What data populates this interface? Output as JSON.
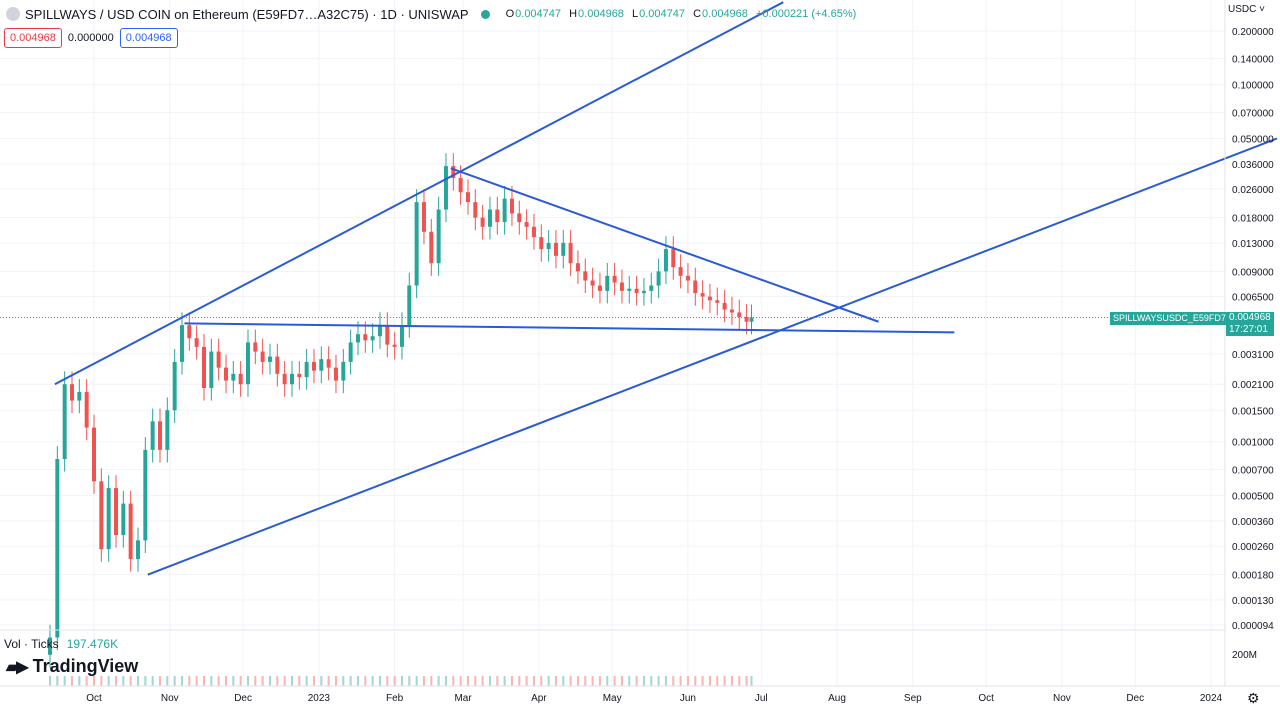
{
  "header": {
    "title": "SPILLWAYS / USD COIN on Ethereum (E59FD7…A32C75) · 1D · UNISWAP",
    "open_label": "O",
    "open": "0.004747",
    "high_label": "H",
    "high": "0.004968",
    "low_label": "L",
    "low": "0.004747",
    "close_label": "C",
    "close": "0.004968",
    "change": "+0.000221 (+4.65%)",
    "status_color": "#26a69a"
  },
  "pills": {
    "sell": "0.004968",
    "spread": "0.000000",
    "buy": "0.004968"
  },
  "currency": "USDC ˅",
  "last_price": {
    "symbol": "SPILLWAYSUSDC_E59FD7",
    "price": "0.004968",
    "countdown": "17:27:01"
  },
  "volume": {
    "label": "Vol · Ticks",
    "value": "197.476K",
    "scale_label": "200M"
  },
  "brand": {
    "name": "TradingView"
  },
  "chart_data": {
    "type": "candlestick",
    "scale": "log",
    "up_color": "#26a69a",
    "down_color": "#ef5350",
    "drawing_color": "#2a5bd7",
    "y_ticks": [
      "0.200000",
      "0.140000",
      "0.100000",
      "0.070000",
      "0.050000",
      "0.036000",
      "0.026000",
      "0.018000",
      "0.013000",
      "0.009000",
      "0.006500",
      "0.004968",
      "0.003100",
      "0.002100",
      "0.001500",
      "0.001000",
      "0.000700",
      "0.000500",
      "0.000360",
      "0.000260",
      "0.000180",
      "0.000130",
      "0.000094"
    ],
    "y_tick_values": [
      0.2,
      0.14,
      0.1,
      0.07,
      0.05,
      0.036,
      0.026,
      0.018,
      0.013,
      0.009,
      0.0065,
      0.004968,
      0.0031,
      0.0021,
      0.0015,
      0.001,
      0.0007,
      0.0005,
      0.00036,
      0.00026,
      0.00018,
      0.00013,
      9.4e-05
    ],
    "x_ticks": [
      "Oct",
      "Nov",
      "Dec",
      "2023",
      "Feb",
      "Mar",
      "Apr",
      "May",
      "Jun",
      "Jul",
      "Aug",
      "Sep",
      "Oct",
      "Nov",
      "Dec",
      "2024"
    ],
    "x_tick_dates": [
      "2022-10-01",
      "2022-11-01",
      "2022-12-01",
      "2023-01-01",
      "2023-02-01",
      "2023-03-01",
      "2023-04-01",
      "2023-05-01",
      "2023-06-01",
      "2023-07-01",
      "2023-08-01",
      "2023-09-01",
      "2023-10-01",
      "2023-11-01",
      "2023-12-01",
      "2024-01-01"
    ],
    "series": [
      {
        "points": [
          [
            "2022-09-13",
            8e-05
          ],
          [
            "2022-09-16",
            0.0008
          ],
          [
            "2022-09-19",
            0.0021
          ],
          [
            "2022-09-22",
            0.0017
          ],
          [
            "2022-09-25",
            0.0019
          ],
          [
            "2022-09-28",
            0.0012
          ],
          [
            "2022-10-01",
            0.0006
          ],
          [
            "2022-10-04",
            0.00025
          ],
          [
            "2022-10-07",
            0.00055
          ],
          [
            "2022-10-10",
            0.0003
          ],
          [
            "2022-10-13",
            0.00045
          ],
          [
            "2022-10-16",
            0.00022
          ],
          [
            "2022-10-19",
            0.00028
          ],
          [
            "2022-10-22",
            0.0009
          ],
          [
            "2022-10-25",
            0.0013
          ],
          [
            "2022-10-28",
            0.0009
          ],
          [
            "2022-10-31",
            0.0015
          ],
          [
            "2022-11-03",
            0.0028
          ],
          [
            "2022-11-06",
            0.0045
          ],
          [
            "2022-11-09",
            0.0038
          ],
          [
            "2022-11-12",
            0.0034
          ],
          [
            "2022-11-15",
            0.002
          ],
          [
            "2022-11-18",
            0.0032
          ],
          [
            "2022-11-21",
            0.0026
          ],
          [
            "2022-11-24",
            0.0022
          ],
          [
            "2022-11-27",
            0.0024
          ],
          [
            "2022-11-30",
            0.0021
          ],
          [
            "2022-12-03",
            0.0036
          ],
          [
            "2022-12-06",
            0.0032
          ],
          [
            "2022-12-09",
            0.0028
          ],
          [
            "2022-12-12",
            0.003
          ],
          [
            "2022-12-15",
            0.0024
          ],
          [
            "2022-12-18",
            0.0021
          ],
          [
            "2022-12-21",
            0.0024
          ],
          [
            "2022-12-24",
            0.0023
          ],
          [
            "2022-12-27",
            0.0028
          ],
          [
            "2022-12-30",
            0.0025
          ],
          [
            "2023-01-02",
            0.0029
          ],
          [
            "2023-01-05",
            0.0026
          ],
          [
            "2023-01-08",
            0.0022
          ],
          [
            "2023-01-11",
            0.0028
          ],
          [
            "2023-01-14",
            0.0036
          ],
          [
            "2023-01-17",
            0.004
          ],
          [
            "2023-01-20",
            0.0037
          ],
          [
            "2023-01-23",
            0.0039
          ],
          [
            "2023-01-26",
            0.0045
          ],
          [
            "2023-01-29",
            0.0035
          ],
          [
            "2023-02-01",
            0.0034
          ],
          [
            "2023-02-04",
            0.0045
          ],
          [
            "2023-02-07",
            0.0075
          ],
          [
            "2023-02-10",
            0.022
          ],
          [
            "2023-02-13",
            0.015
          ],
          [
            "2023-02-16",
            0.01
          ],
          [
            "2023-02-19",
            0.02
          ],
          [
            "2023-02-22",
            0.035
          ],
          [
            "2023-02-25",
            0.03
          ],
          [
            "2023-02-28",
            0.025
          ],
          [
            "2023-03-03",
            0.022
          ],
          [
            "2023-03-06",
            0.018
          ],
          [
            "2023-03-09",
            0.016
          ],
          [
            "2023-03-12",
            0.02
          ],
          [
            "2023-03-15",
            0.017
          ],
          [
            "2023-03-18",
            0.023
          ],
          [
            "2023-03-21",
            0.019
          ],
          [
            "2023-03-24",
            0.017
          ],
          [
            "2023-03-27",
            0.016
          ],
          [
            "2023-03-30",
            0.014
          ],
          [
            "2023-04-02",
            0.012
          ],
          [
            "2023-04-05",
            0.013
          ],
          [
            "2023-04-08",
            0.011
          ],
          [
            "2023-04-11",
            0.013
          ],
          [
            "2023-04-14",
            0.01
          ],
          [
            "2023-04-17",
            0.009
          ],
          [
            "2023-04-20",
            0.008
          ],
          [
            "2023-04-23",
            0.0075
          ],
          [
            "2023-04-26",
            0.007
          ],
          [
            "2023-04-29",
            0.0085
          ],
          [
            "2023-05-02",
            0.0078
          ],
          [
            "2023-05-05",
            0.007
          ],
          [
            "2023-05-08",
            0.0072
          ],
          [
            "2023-05-11",
            0.0068
          ],
          [
            "2023-05-14",
            0.007
          ],
          [
            "2023-05-17",
            0.0075
          ],
          [
            "2023-05-20",
            0.009
          ],
          [
            "2023-05-23",
            0.012
          ],
          [
            "2023-05-26",
            0.0095
          ],
          [
            "2023-05-29",
            0.0085
          ],
          [
            "2023-06-01",
            0.008
          ],
          [
            "2023-06-04",
            0.0068
          ],
          [
            "2023-06-07",
            0.0065
          ],
          [
            "2023-06-10",
            0.0062
          ],
          [
            "2023-06-13",
            0.006
          ],
          [
            "2023-06-16",
            0.0055
          ],
          [
            "2023-06-19",
            0.0053
          ],
          [
            "2023-06-22",
            0.005
          ],
          [
            "2023-06-25",
            0.0047
          ],
          [
            "2023-06-27",
            0.004968
          ]
        ]
      }
    ],
    "trendlines": [
      {
        "from": [
          "2022-09-15",
          0.0021
        ],
        "to": [
          "2023-03-15",
          0.035
        ],
        "extended_to": [
          "2023-07-10",
          0.29
        ]
      },
      {
        "from": [
          "2022-10-23",
          0.00018
        ],
        "to": [
          "2024-01-28",
          0.05
        ]
      },
      {
        "from": [
          "2022-11-07",
          0.0046
        ],
        "to": [
          "2023-09-18",
          0.0041
        ]
      },
      {
        "from": [
          "2023-02-24",
          0.034
        ],
        "to": [
          "2023-08-18",
          0.0047
        ]
      }
    ]
  }
}
